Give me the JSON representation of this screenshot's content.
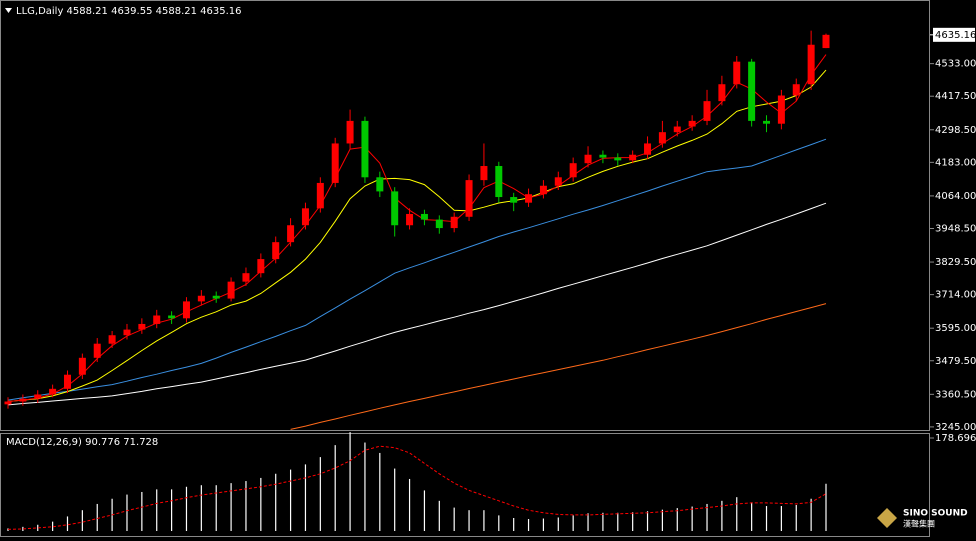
{
  "chart_data": [
    {
      "type": "candlestick",
      "title": "LLG,Daily  4588.21 4639.55 4588.21 4635.16",
      "categories": [
        null,
        null,
        null,
        null,
        null,
        null,
        null,
        null,
        null,
        null,
        null,
        null,
        null,
        null,
        null,
        null,
        null,
        null,
        null,
        null,
        null,
        null,
        null,
        null,
        null,
        null,
        null,
        null,
        null,
        null,
        null,
        null,
        null,
        null,
        null,
        null,
        null,
        null,
        null,
        null,
        null,
        null,
        null,
        null,
        null,
        null,
        null,
        null,
        null,
        null,
        null,
        null,
        null,
        null,
        null,
        null
      ],
      "open": [
        3325,
        3335,
        3345,
        3360,
        3380,
        3430,
        3490,
        3540,
        3570,
        3590,
        3610,
        3640,
        3630,
        3690,
        3710,
        3700,
        3760,
        3790,
        3840,
        3900,
        3960,
        4020,
        4110,
        4250,
        4330,
        4130,
        4080,
        3960,
        4000,
        3980,
        3950,
        3990,
        4120,
        4170,
        4060,
        4040,
        4070,
        4100,
        4130,
        4180,
        4210,
        4200,
        4190,
        4210,
        4250,
        4290,
        4310,
        4330,
        4400,
        4460,
        4540,
        4330,
        4320,
        4420,
        4460,
        4588.21
      ],
      "high": [
        3350,
        3360,
        3375,
        3395,
        3445,
        3505,
        3560,
        3585,
        3610,
        3630,
        3660,
        3655,
        3705,
        3730,
        3725,
        3775,
        3810,
        3860,
        3920,
        3985,
        4040,
        4130,
        4270,
        4370,
        4345,
        4150,
        4095,
        4020,
        4015,
        3995,
        4005,
        4140,
        4250,
        4185,
        4075,
        4090,
        4120,
        4150,
        4200,
        4240,
        4225,
        4215,
        4225,
        4275,
        4330,
        4330,
        4350,
        4440,
        4490,
        4560,
        4550,
        4350,
        4440,
        4480,
        4650,
        4639.55
      ],
      "low": [
        3310,
        3320,
        3330,
        3350,
        3365,
        3415,
        3475,
        3525,
        3555,
        3575,
        3595,
        3610,
        3615,
        3675,
        3685,
        3690,
        3745,
        3775,
        3825,
        3885,
        3945,
        4005,
        4095,
        4230,
        4110,
        4060,
        3920,
        3945,
        3960,
        3930,
        3935,
        3975,
        4100,
        4040,
        4010,
        4025,
        4055,
        4085,
        4115,
        4165,
        4180,
        4170,
        4180,
        4195,
        4235,
        4275,
        4295,
        4315,
        4385,
        4445,
        4310,
        4290,
        4300,
        4400,
        4440,
        4588.21
      ],
      "close": [
        3335,
        3345,
        3360,
        3380,
        3430,
        3490,
        3540,
        3570,
        3590,
        3610,
        3640,
        3630,
        3690,
        3710,
        3700,
        3760,
        3790,
        3840,
        3900,
        3960,
        4020,
        4110,
        4250,
        4330,
        4130,
        4080,
        3960,
        4000,
        3980,
        3950,
        3990,
        4120,
        4170,
        4060,
        4040,
        4070,
        4100,
        4130,
        4180,
        4210,
        4200,
        4190,
        4210,
        4250,
        4290,
        4310,
        4330,
        4400,
        4460,
        4540,
        4330,
        4320,
        4420,
        4460,
        4600,
        4635.16
      ],
      "up_color": "#ff0000",
      "down_color": "#00c800",
      "series": [
        {
          "color": "#ffffff",
          "values": [
            3323,
            3328,
            3332,
            3337,
            3341,
            3346,
            3350,
            3355,
            3363,
            3371,
            3380,
            3388,
            3396,
            3404,
            3415,
            3426,
            3437,
            3449,
            3460,
            3471,
            3482,
            3498,
            3514,
            3531,
            3547,
            3564,
            3580,
            3594,
            3607,
            3621,
            3634,
            3648,
            3661,
            3675,
            3690,
            3705,
            3720,
            3736,
            3751,
            3766,
            3781,
            3796,
            3811,
            3826,
            3842,
            3857,
            3872,
            3887,
            3906,
            3925,
            3944,
            3963,
            3981,
            4000,
            4019,
            4038
          ]
        },
        {
          "color": "#ff6a1a",
          "values": [
            null,
            null,
            null,
            null,
            null,
            null,
            null,
            null,
            null,
            null,
            null,
            null,
            null,
            null,
            null,
            null,
            null,
            null,
            null,
            3236,
            3248,
            3261,
            3273,
            3286,
            3298,
            3311,
            3323,
            3335,
            3346,
            3358,
            3369,
            3381,
            3392,
            3404,
            3415,
            3426,
            3437,
            3448,
            3459,
            3470,
            3481,
            3494,
            3506,
            3519,
            3531,
            3544,
            3556,
            3569,
            3583,
            3597,
            3611,
            3626,
            3640,
            3654,
            3668,
            3682
          ]
        },
        {
          "color": "#3a8fe0",
          "values": [
            3340,
            3348,
            3356,
            3364,
            3371,
            3379,
            3387,
            3395,
            3407,
            3420,
            3432,
            3445,
            3457,
            3470,
            3489,
            3509,
            3528,
            3547,
            3566,
            3586,
            3605,
            3636,
            3667,
            3698,
            3728,
            3759,
            3790,
            3809,
            3827,
            3846,
            3864,
            3883,
            3901,
            3920,
            3936,
            3951,
            3967,
            3983,
            3999,
            4014,
            4030,
            4047,
            4064,
            4081,
            4099,
            4116,
            4133,
            4150,
            4157,
            4163,
            4170,
            4189,
            4208,
            4227,
            4246,
            4265
          ]
        },
        {
          "color": "#ffff00",
          "values": [
            3335,
            3340,
            3345,
            3355,
            3370,
            3390,
            3411,
            3445,
            3480,
            3516,
            3550,
            3580,
            3611,
            3634,
            3653,
            3677,
            3691,
            3718,
            3756,
            3793,
            3840,
            3899,
            3974,
            4054,
            4099,
            4124,
            4126,
            4122,
            4104,
            4061,
            4013,
            4011,
            4024,
            4039,
            4047,
            4057,
            4077,
            4097,
            4107,
            4130,
            4151,
            4169,
            4184,
            4196,
            4219,
            4241,
            4261,
            4283,
            4320,
            4364,
            4380,
            4390,
            4400,
            4420,
            4450,
            4510
          ]
        },
        {
          "color": "#ff0000",
          "values": [
            3335,
            3340,
            3347,
            3362,
            3390,
            3433,
            3487,
            3533,
            3567,
            3590,
            3613,
            3627,
            3653,
            3677,
            3700,
            3723,
            3750,
            3797,
            3843,
            3900,
            3960,
            4030,
            4127,
            4230,
            4237,
            4180,
            4057,
            4013,
            3980,
            3977,
            3973,
            4020,
            4093,
            4117,
            4090,
            4057,
            4070,
            4100,
            4137,
            4173,
            4197,
            4200,
            4200,
            4217,
            4250,
            4283,
            4310,
            4347,
            4397,
            4467,
            4443,
            4397,
            4357,
            4400,
            4493,
            4565
          ]
        }
      ],
      "ylim": [
        3234,
        4709
      ],
      "yticks": [
        {
          "value": 3245,
          "label": "3245.00"
        },
        {
          "value": 3360.5,
          "label": "3360.50"
        },
        {
          "value": 3479.5,
          "label": "3479.50"
        },
        {
          "value": 3595,
          "label": "3595.00"
        },
        {
          "value": 3714,
          "label": "3714.00"
        },
        {
          "value": 3829.5,
          "label": "3829.50"
        },
        {
          "value": 3948.5,
          "label": "3948.50"
        },
        {
          "value": 4064,
          "label": "4064.00"
        },
        {
          "value": 4183,
          "label": "4183.00"
        },
        {
          "value": 4298.5,
          "label": "4298.50"
        },
        {
          "value": 4417.5,
          "label": "4417.50"
        },
        {
          "value": 4533,
          "label": "4533.00"
        }
      ],
      "price_marker": {
        "value": 4635.16,
        "label": "4635.16"
      },
      "grid": false
    },
    {
      "type": "bar",
      "title": "MACD(12,26,9) 90.776 71.728",
      "categories": [
        null,
        null,
        null,
        null,
        null,
        null,
        null,
        null,
        null,
        null,
        null,
        null,
        null,
        null,
        null,
        null,
        null,
        null,
        null,
        null,
        null,
        null,
        null,
        null,
        null,
        null,
        null,
        null,
        null,
        null,
        null,
        null,
        null,
        null,
        null,
        null,
        null,
        null,
        null,
        null,
        null,
        null,
        null,
        null,
        null,
        null,
        null,
        null,
        null,
        null,
        null,
        null,
        null,
        null,
        null,
        null
      ],
      "values": [
        5,
        8,
        12,
        18,
        28,
        40,
        52,
        62,
        70,
        75,
        80,
        80,
        85,
        88,
        88,
        92,
        96,
        102,
        110,
        118,
        128,
        142,
        165,
        190,
        170,
        150,
        120,
        100,
        78,
        58,
        45,
        40,
        40,
        30,
        25,
        23,
        24,
        26,
        30,
        34,
        35,
        35,
        36,
        38,
        41,
        44,
        47,
        52,
        58,
        65,
        55,
        48,
        48,
        50,
        62,
        90.776
      ],
      "color": "#ffffff",
      "signal": {
        "color": "#ff0000",
        "values": [
          3,
          4,
          6,
          8,
          12,
          17,
          24,
          31,
          39,
          46,
          53,
          58,
          64,
          69,
          73,
          77,
          81,
          85,
          90,
          96,
          102,
          110,
          121,
          135,
          155,
          163,
          160,
          150,
          130,
          110,
          92,
          78,
          68,
          58,
          48,
          40,
          35,
          32,
          31,
          31,
          32,
          33,
          34,
          35,
          37,
          39,
          42,
          45,
          48,
          52,
          54,
          54,
          53,
          52,
          55,
          71.728
        ]
      },
      "ylim": [
        -9.6,
        186.4
      ],
      "yticks": [
        {
          "value": 178.696,
          "label": "178.696"
        }
      ]
    }
  ],
  "logo": {
    "name": "SINO SOUND",
    "subtitle": "漢聲集團"
  }
}
